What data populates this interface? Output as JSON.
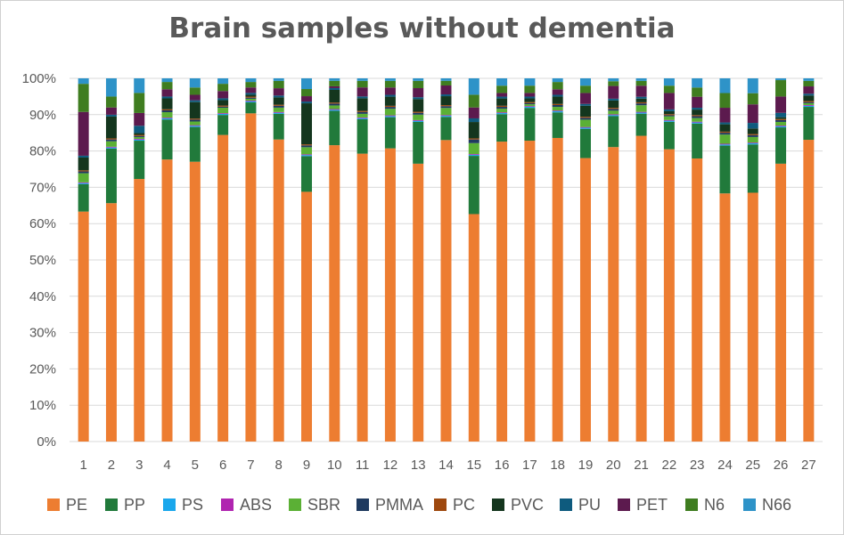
{
  "chart_data": {
    "type": "bar",
    "stacked": true,
    "percent_stacked": true,
    "title": "Brain samples without dementia",
    "xlabel": "",
    "ylabel": "",
    "ylim": [
      0,
      100
    ],
    "y_ticks": [
      "0%",
      "10%",
      "20%",
      "30%",
      "40%",
      "50%",
      "60%",
      "70%",
      "80%",
      "90%",
      "100%"
    ],
    "grid": true,
    "legend_position": "bottom",
    "categories": [
      "1",
      "2",
      "3",
      "4",
      "5",
      "6",
      "7",
      "8",
      "9",
      "10",
      "11",
      "12",
      "13",
      "14",
      "15",
      "16",
      "17",
      "18",
      "19",
      "20",
      "21",
      "22",
      "23",
      "24",
      "25",
      "26",
      "27"
    ],
    "series": [
      {
        "name": "PE",
        "color": "#ED7D31",
        "values": [
          63,
          65.5,
          72,
          77.5,
          76.5,
          84.5,
          90,
          82.5,
          70,
          82,
          79.5,
          80,
          76.5,
          84.5,
          62.5,
          82,
          82.5,
          83,
          77.5,
          81,
          83,
          80,
          77,
          67.5,
          67,
          76.5,
          82.5
        ]
      },
      {
        "name": "PP",
        "color": "#217A3B",
        "values": [
          7.5,
          15,
          10.5,
          11,
          9.5,
          5.5,
          3,
          7,
          10,
          9.5,
          9.5,
          8.5,
          11.5,
          6.5,
          16,
          7.5,
          9,
          7,
          8,
          8.5,
          6,
          7.5,
          9.5,
          13,
          13,
          10,
          9
        ]
      },
      {
        "name": "PS",
        "color": "#1AA7EC",
        "values": [
          0.3,
          0.3,
          0.3,
          0.3,
          0.3,
          0.3,
          0.3,
          0.3,
          0.3,
          0.3,
          0.3,
          0.3,
          0.3,
          0.3,
          0.3,
          0.3,
          0.3,
          0.3,
          0.3,
          0.3,
          0.3,
          0.3,
          0.3,
          0.3,
          0.3,
          0.3,
          0.3
        ]
      },
      {
        "name": "ABS",
        "color": "#B025B0",
        "values": [
          0.2,
          0.2,
          0.2,
          0.2,
          0.2,
          0.2,
          0.2,
          0.2,
          0.2,
          0.2,
          0.2,
          0.2,
          0.2,
          0.2,
          0.2,
          0.2,
          0.2,
          0.2,
          0.2,
          0.2,
          0.2,
          0.2,
          0.2,
          0.2,
          0.2,
          0.2,
          0.2
        ]
      },
      {
        "name": "SBR",
        "color": "#5BB035",
        "values": [
          2.5,
          1.5,
          0.5,
          1.5,
          1,
          1.5,
          0.5,
          1.2,
          2,
          1,
          1,
          1.8,
          1.5,
          2,
          3,
          1,
          0.5,
          1,
          2,
          1,
          1.8,
          1,
          1,
          2.5,
          1.5,
          1,
          0.5
        ]
      },
      {
        "name": "PMMA",
        "color": "#1F3A5F",
        "values": [
          0.5,
          0.5,
          0.3,
          0.5,
          0.5,
          0.3,
          0.3,
          0.5,
          0.5,
          0.5,
          0.5,
          0.5,
          0.5,
          0.5,
          1,
          0.5,
          0.3,
          0.5,
          0.5,
          0.5,
          0.5,
          0.3,
          0.5,
          0.5,
          0.5,
          0.5,
          0.3
        ]
      },
      {
        "name": "PC",
        "color": "#9E480E",
        "values": [
          0.3,
          0.3,
          0.3,
          0.3,
          0.3,
          0.3,
          0.3,
          0.3,
          0.3,
          0.3,
          0.3,
          0.3,
          0.3,
          0.3,
          0.3,
          0.3,
          0.3,
          0.3,
          0.3,
          0.3,
          0.3,
          0.3,
          0.3,
          0.3,
          0.3,
          0.3,
          0.3
        ]
      },
      {
        "name": "PVC",
        "color": "#14361E",
        "values": [
          3.5,
          6,
          0.5,
          3,
          4.5,
          1.5,
          0.5,
          2,
          11.5,
          3.5,
          3.5,
          2.5,
          3.5,
          2.5,
          4.5,
          2,
          1,
          2,
          3,
          2,
          1,
          0.8,
          1.5,
          2,
          1.5,
          0.5,
          1.5
        ]
      },
      {
        "name": "PU",
        "color": "#0E5B7E",
        "values": [
          0.5,
          0.5,
          2,
          0.5,
          0.5,
          0.5,
          0.5,
          0.5,
          0.5,
          0.5,
          0.5,
          0.5,
          0.5,
          0.5,
          1,
          0.5,
          0.5,
          0.5,
          0.5,
          0.5,
          0.5,
          0.5,
          0.5,
          0.5,
          1.5,
          1.2,
          0.5
        ]
      },
      {
        "name": "PET",
        "color": "#5C1A4E",
        "values": [
          12,
          2,
          3.5,
          2,
          1.5,
          2,
          1.5,
          2,
          1.5,
          0.5,
          2.5,
          2,
          2.5,
          2.5,
          3,
          1,
          1,
          1.5,
          3,
          3.5,
          3,
          4.5,
          3,
          4,
          5,
          4.5,
          2
        ]
      },
      {
        "name": "N6",
        "color": "#3F7D20",
        "values": [
          7.7,
          3,
          5.5,
          2,
          2,
          2,
          1.5,
          2,
          2,
          1.5,
          1.8,
          1.8,
          2,
          1.3,
          3.5,
          2,
          2,
          2,
          2,
          1.3,
          1.3,
          2,
          2.5,
          4,
          3,
          4.5,
          1.5
        ]
      },
      {
        "name": "N66",
        "color": "#2E93C8",
        "values": [
          1.5,
          5,
          4,
          1,
          2.5,
          1.5,
          1,
          0.7,
          3,
          0.7,
          0.7,
          0.7,
          0.7,
          0.7,
          4.5,
          2,
          2,
          1,
          2,
          0.8,
          0.7,
          2,
          2.5,
          4,
          4,
          0.5,
          0.7
        ]
      }
    ]
  }
}
